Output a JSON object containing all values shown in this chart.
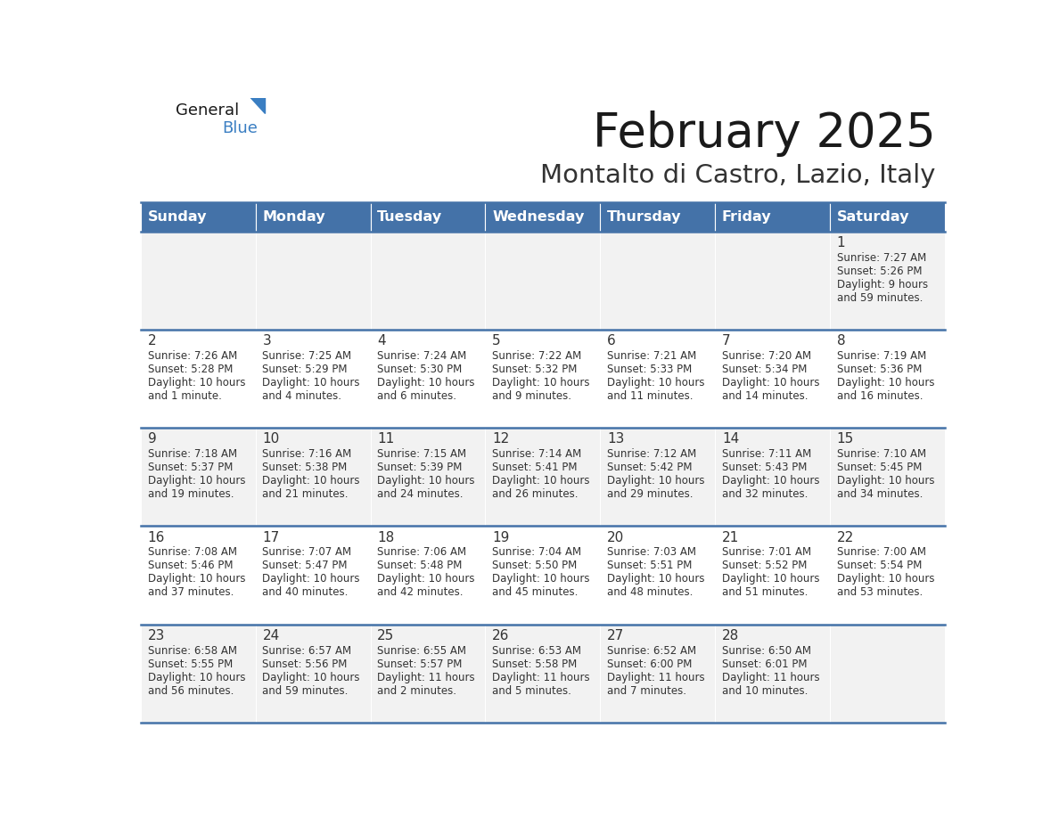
{
  "title": "February 2025",
  "subtitle": "Montalto di Castro, Lazio, Italy",
  "header_color": "#4472A8",
  "header_text_color": "#FFFFFF",
  "cell_bg_even": "#F2F2F2",
  "cell_bg_odd": "#FFFFFF",
  "border_color": "#4472A8",
  "text_color": "#333333",
  "days_of_week": [
    "Sunday",
    "Monday",
    "Tuesday",
    "Wednesday",
    "Thursday",
    "Friday",
    "Saturday"
  ],
  "calendar": [
    [
      null,
      null,
      null,
      null,
      null,
      null,
      {
        "day": "1",
        "sunrise": "7:27 AM",
        "sunset": "5:26 PM",
        "daylight": "9 hours",
        "daylight2": "and 59 minutes."
      }
    ],
    [
      {
        "day": "2",
        "sunrise": "7:26 AM",
        "sunset": "5:28 PM",
        "daylight": "10 hours",
        "daylight2": "and 1 minute."
      },
      {
        "day": "3",
        "sunrise": "7:25 AM",
        "sunset": "5:29 PM",
        "daylight": "10 hours",
        "daylight2": "and 4 minutes."
      },
      {
        "day": "4",
        "sunrise": "7:24 AM",
        "sunset": "5:30 PM",
        "daylight": "10 hours",
        "daylight2": "and 6 minutes."
      },
      {
        "day": "5",
        "sunrise": "7:22 AM",
        "sunset": "5:32 PM",
        "daylight": "10 hours",
        "daylight2": "and 9 minutes."
      },
      {
        "day": "6",
        "sunrise": "7:21 AM",
        "sunset": "5:33 PM",
        "daylight": "10 hours",
        "daylight2": "and 11 minutes."
      },
      {
        "day": "7",
        "sunrise": "7:20 AM",
        "sunset": "5:34 PM",
        "daylight": "10 hours",
        "daylight2": "and 14 minutes."
      },
      {
        "day": "8",
        "sunrise": "7:19 AM",
        "sunset": "5:36 PM",
        "daylight": "10 hours",
        "daylight2": "and 16 minutes."
      }
    ],
    [
      {
        "day": "9",
        "sunrise": "7:18 AM",
        "sunset": "5:37 PM",
        "daylight": "10 hours",
        "daylight2": "and 19 minutes."
      },
      {
        "day": "10",
        "sunrise": "7:16 AM",
        "sunset": "5:38 PM",
        "daylight": "10 hours",
        "daylight2": "and 21 minutes."
      },
      {
        "day": "11",
        "sunrise": "7:15 AM",
        "sunset": "5:39 PM",
        "daylight": "10 hours",
        "daylight2": "and 24 minutes."
      },
      {
        "day": "12",
        "sunrise": "7:14 AM",
        "sunset": "5:41 PM",
        "daylight": "10 hours",
        "daylight2": "and 26 minutes."
      },
      {
        "day": "13",
        "sunrise": "7:12 AM",
        "sunset": "5:42 PM",
        "daylight": "10 hours",
        "daylight2": "and 29 minutes."
      },
      {
        "day": "14",
        "sunrise": "7:11 AM",
        "sunset": "5:43 PM",
        "daylight": "10 hours",
        "daylight2": "and 32 minutes."
      },
      {
        "day": "15",
        "sunrise": "7:10 AM",
        "sunset": "5:45 PM",
        "daylight": "10 hours",
        "daylight2": "and 34 minutes."
      }
    ],
    [
      {
        "day": "16",
        "sunrise": "7:08 AM",
        "sunset": "5:46 PM",
        "daylight": "10 hours",
        "daylight2": "and 37 minutes."
      },
      {
        "day": "17",
        "sunrise": "7:07 AM",
        "sunset": "5:47 PM",
        "daylight": "10 hours",
        "daylight2": "and 40 minutes."
      },
      {
        "day": "18",
        "sunrise": "7:06 AM",
        "sunset": "5:48 PM",
        "daylight": "10 hours",
        "daylight2": "and 42 minutes."
      },
      {
        "day": "19",
        "sunrise": "7:04 AM",
        "sunset": "5:50 PM",
        "daylight": "10 hours",
        "daylight2": "and 45 minutes."
      },
      {
        "day": "20",
        "sunrise": "7:03 AM",
        "sunset": "5:51 PM",
        "daylight": "10 hours",
        "daylight2": "and 48 minutes."
      },
      {
        "day": "21",
        "sunrise": "7:01 AM",
        "sunset": "5:52 PM",
        "daylight": "10 hours",
        "daylight2": "and 51 minutes."
      },
      {
        "day": "22",
        "sunrise": "7:00 AM",
        "sunset": "5:54 PM",
        "daylight": "10 hours",
        "daylight2": "and 53 minutes."
      }
    ],
    [
      {
        "day": "23",
        "sunrise": "6:58 AM",
        "sunset": "5:55 PM",
        "daylight": "10 hours",
        "daylight2": "and 56 minutes."
      },
      {
        "day": "24",
        "sunrise": "6:57 AM",
        "sunset": "5:56 PM",
        "daylight": "10 hours",
        "daylight2": "and 59 minutes."
      },
      {
        "day": "25",
        "sunrise": "6:55 AM",
        "sunset": "5:57 PM",
        "daylight": "11 hours",
        "daylight2": "and 2 minutes."
      },
      {
        "day": "26",
        "sunrise": "6:53 AM",
        "sunset": "5:58 PM",
        "daylight": "11 hours",
        "daylight2": "and 5 minutes."
      },
      {
        "day": "27",
        "sunrise": "6:52 AM",
        "sunset": "6:00 PM",
        "daylight": "11 hours",
        "daylight2": "and 7 minutes."
      },
      {
        "day": "28",
        "sunrise": "6:50 AM",
        "sunset": "6:01 PM",
        "daylight": "11 hours",
        "daylight2": "and 10 minutes."
      },
      null
    ]
  ]
}
